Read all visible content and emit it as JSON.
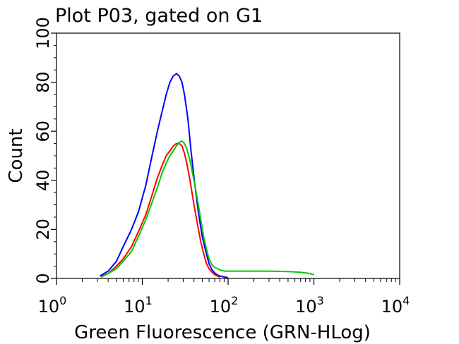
{
  "chart_data": {
    "type": "line",
    "title": "Plot P03, gated on G1",
    "xlabel": "Green Fluorescence (GRN-HLog)",
    "ylabel": "Count",
    "x_scale": "log",
    "xlim": [
      1,
      10000
    ],
    "ylim": [
      0,
      100
    ],
    "x_ticks": [
      {
        "base": "10",
        "exp": "0",
        "value": 1
      },
      {
        "base": "10",
        "exp": "1",
        "value": 10
      },
      {
        "base": "10",
        "exp": "2",
        "value": 100
      },
      {
        "base": "10",
        "exp": "3",
        "value": 1000
      },
      {
        "base": "10",
        "exp": "4",
        "value": 10000
      }
    ],
    "y_ticks": [
      "0",
      "20",
      "40",
      "60",
      "80",
      "100"
    ],
    "y_tick_values": [
      0,
      20,
      40,
      60,
      80,
      100
    ],
    "grid": false,
    "legend": "none",
    "series": [
      {
        "color": "#0000ff",
        "x": [
          3.2,
          4.0,
          5.0,
          6.0,
          7.5,
          9.0,
          11,
          13,
          15,
          17,
          19,
          21,
          23,
          25,
          27,
          29,
          31,
          34,
          37,
          41,
          45,
          50,
          55,
          60,
          65,
          70,
          75,
          80,
          90,
          100
        ],
        "y": [
          1,
          3,
          7,
          13,
          20,
          27,
          38,
          50,
          60,
          68,
          75,
          80,
          82.5,
          83.5,
          82.5,
          80,
          75,
          65,
          52,
          38,
          27,
          17,
          11,
          6,
          3.5,
          2.2,
          1.4,
          1,
          0.6,
          0.3
        ]
      },
      {
        "color": "#ff0000",
        "x": [
          3.3,
          4.0,
          5.0,
          6.0,
          7.5,
          9.0,
          11,
          13,
          15,
          17,
          19,
          21,
          23,
          25,
          27,
          29,
          31,
          33,
          36,
          40,
          44,
          48,
          52,
          56,
          60,
          65,
          70,
          75,
          80
        ],
        "y": [
          0.8,
          2,
          5,
          8,
          13,
          19,
          26,
          34,
          41,
          46,
          50,
          52,
          54,
          55,
          55,
          54,
          51,
          47,
          40,
          30,
          22,
          15,
          10,
          6,
          4,
          2.5,
          1.5,
          1,
          0.5
        ]
      },
      {
        "color": "#00cc00",
        "x": [
          3.3,
          4.0,
          5.0,
          6.0,
          7.5,
          9.0,
          11,
          13,
          15,
          17,
          19,
          21,
          23,
          25,
          27,
          29,
          31,
          33,
          36,
          40,
          44,
          48,
          52,
          56,
          60,
          65,
          70,
          75,
          80,
          90,
          100,
          120,
          150,
          200,
          300,
          500,
          700,
          900,
          1000
        ],
        "y": [
          0.5,
          2,
          4,
          7,
          11,
          17,
          24,
          31,
          37,
          43,
          47,
          50,
          52,
          54,
          55.5,
          56,
          55,
          53,
          48,
          40,
          32,
          24,
          17,
          12,
          8,
          5.5,
          4.5,
          4,
          3.5,
          3,
          3,
          3,
          3,
          3,
          3,
          2.8,
          2.5,
          2,
          1.5
        ]
      }
    ]
  }
}
